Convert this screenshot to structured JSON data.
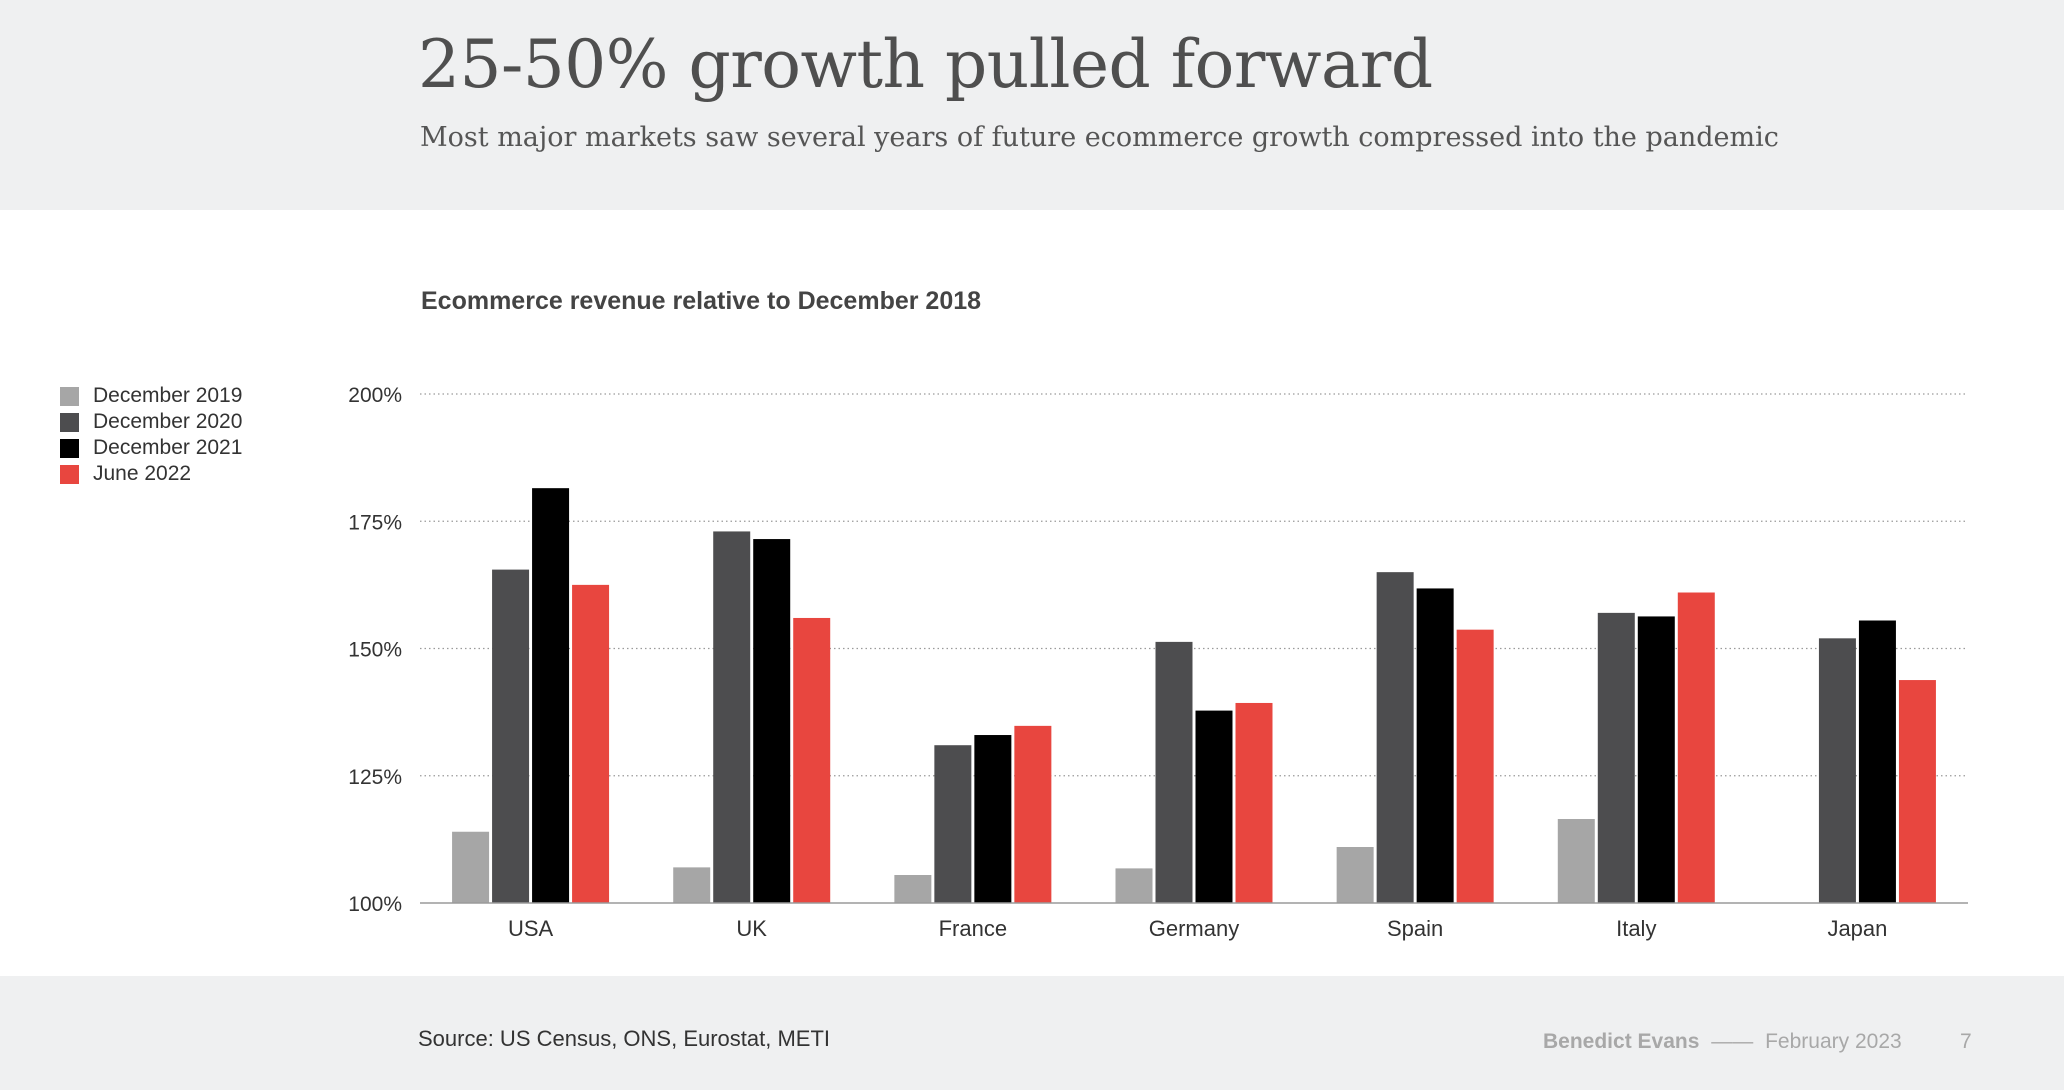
{
  "header": {
    "title": "25-50% growth pulled forward",
    "subtitle": "Most major markets saw several years of future ecommerce growth compressed into the pandemic"
  },
  "footer": {
    "source": "Source: US Census, ONS, Eurostat, METI",
    "author": "Benedict Evans",
    "separator": "——",
    "date": "February 2023",
    "page": "7"
  },
  "chart_data": {
    "type": "bar",
    "title": "Ecommerce revenue relative to December 2018",
    "xlabel": "",
    "ylabel": "",
    "ylim": [
      100,
      200
    ],
    "yticks": [
      "100%",
      "125%",
      "150%",
      "175%",
      "200%"
    ],
    "ytick_values": [
      100,
      125,
      150,
      175,
      200
    ],
    "grid": true,
    "legend_position": "left",
    "categories": [
      "USA",
      "UK",
      "France",
      "Germany",
      "Spain",
      "Italy",
      "Japan"
    ],
    "series": [
      {
        "name": "December 2019",
        "color": "#a6a6a6",
        "values": [
          114,
          107,
          105.5,
          106.8,
          111,
          116.5,
          null
        ]
      },
      {
        "name": "December 2020",
        "color": "#4d4d4f",
        "values": [
          165.5,
          173,
          131,
          151.3,
          165,
          157,
          152
        ]
      },
      {
        "name": "December 2021",
        "color": "#000000",
        "values": [
          181.5,
          171.5,
          133,
          137.8,
          161.8,
          156.3,
          155.5
        ]
      },
      {
        "name": "June 2022",
        "color": "#e8463f",
        "values": [
          162.5,
          156,
          134.8,
          139.3,
          153.7,
          161,
          143.8
        ]
      }
    ]
  }
}
